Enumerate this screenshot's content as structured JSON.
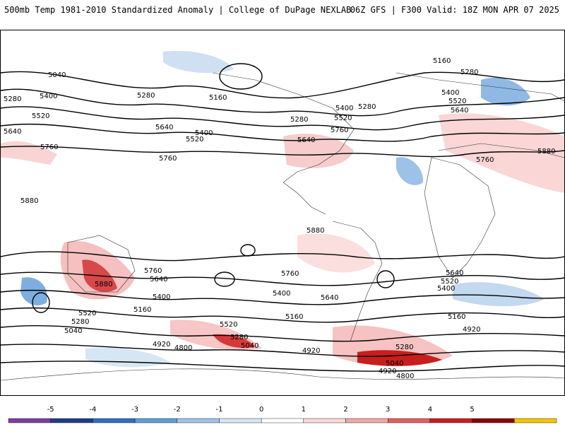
{
  "header": {
    "title_left": "500mb Temp 1981-2010 Standardized Anomaly | College of DuPage NEXLAB",
    "title_right": "06Z GFS | F300 Valid: 18Z MON APR 07 2025"
  },
  "colorbar": {
    "tick_labels": [
      "-5",
      "-4",
      "-3",
      "-2",
      "-1",
      "0",
      "1",
      "2",
      "3",
      "4",
      "5"
    ],
    "colors": [
      "#7b3fa0",
      "#1f3f8a",
      "#2f6fc0",
      "#5f9fd8",
      "#9fc3e8",
      "#d6e6f4",
      "#ffffff",
      "#fbd8d8",
      "#f2a8a8",
      "#e06060",
      "#c81e1e",
      "#8b0000",
      "#f5c400"
    ]
  },
  "contour_labels": [
    "5040",
    "5280",
    "5400",
    "5520",
    "5640",
    "5760",
    "5880",
    "5160",
    "4920",
    "4800"
  ],
  "map_labels": [
    {
      "text": "5160"
    },
    {
      "text": "5280"
    },
    {
      "text": "5040"
    },
    {
      "text": "5280"
    },
    {
      "text": "5400"
    },
    {
      "text": "5280"
    },
    {
      "text": "5160"
    },
    {
      "text": "5520"
    },
    {
      "text": "5640"
    },
    {
      "text": "5640"
    },
    {
      "text": "5400"
    },
    {
      "text": "5520"
    },
    {
      "text": "5280"
    },
    {
      "text": "5520"
    },
    {
      "text": "5280"
    },
    {
      "text": "5400"
    },
    {
      "text": "5760"
    },
    {
      "text": "5640"
    },
    {
      "text": "5760"
    },
    {
      "text": "5400"
    },
    {
      "text": "5520"
    },
    {
      "text": "5640"
    },
    {
      "text": "5760"
    },
    {
      "text": "5880"
    },
    {
      "text": "5880"
    },
    {
      "text": "5880"
    },
    {
      "text": "5880"
    },
    {
      "text": "5760"
    },
    {
      "text": "5640"
    },
    {
      "text": "5400"
    },
    {
      "text": "5760"
    },
    {
      "text": "5400"
    },
    {
      "text": "5640"
    },
    {
      "text": "5760"
    },
    {
      "text": "5640"
    },
    {
      "text": "5520"
    },
    {
      "text": "5400"
    },
    {
      "text": "5160"
    },
    {
      "text": "5520"
    },
    {
      "text": "5280"
    },
    {
      "text": "5040"
    },
    {
      "text": "5520"
    },
    {
      "text": "5160"
    },
    {
      "text": "5280"
    },
    {
      "text": "5040"
    },
    {
      "text": "4920"
    },
    {
      "text": "4800"
    },
    {
      "text": "4920"
    },
    {
      "text": "5160"
    },
    {
      "text": "4920"
    },
    {
      "text": "5280"
    },
    {
      "text": "5040"
    },
    {
      "text": "4920"
    },
    {
      "text": "4800"
    }
  ]
}
